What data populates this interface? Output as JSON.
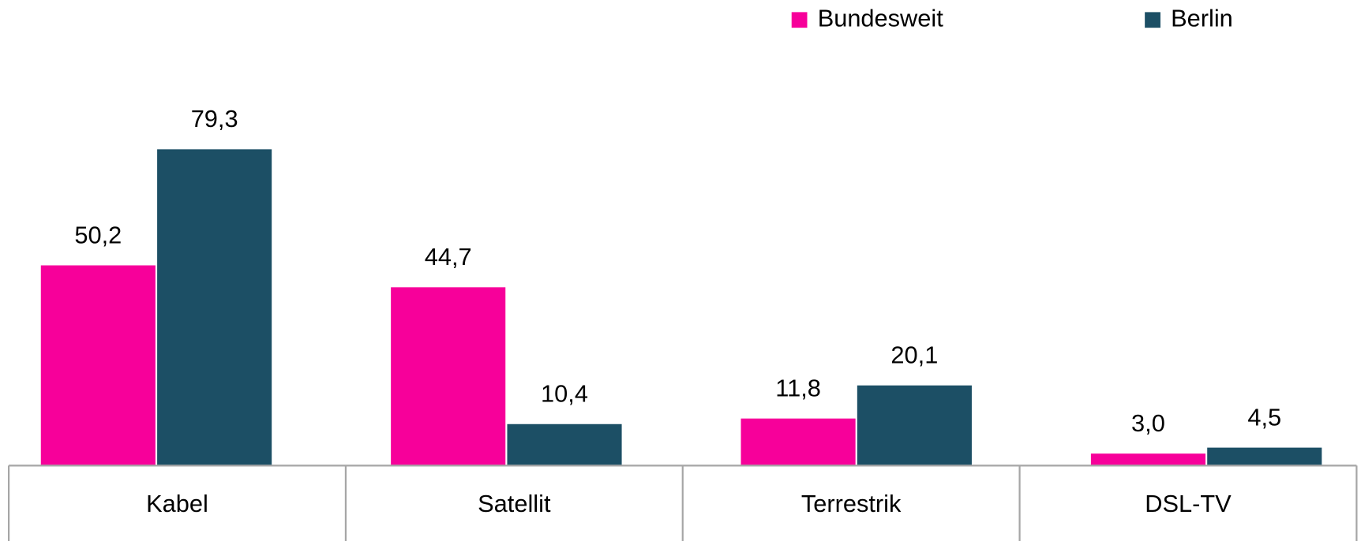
{
  "chart_data": {
    "type": "bar",
    "categories": [
      "Kabel",
      "Satellit",
      "Terrestrik",
      "DSL-TV"
    ],
    "series": [
      {
        "name": "Bundesweit",
        "color": "#f7009a",
        "values": [
          50.2,
          44.7,
          11.8,
          3.0
        ],
        "value_labels": [
          "50,2",
          "44,7",
          "11,8",
          "3,0"
        ]
      },
      {
        "name": "Berlin",
        "color": "#1c4f65",
        "values": [
          79.3,
          10.4,
          20.1,
          4.5
        ],
        "value_labels": [
          "79,3",
          "10,4",
          "20,1",
          "4,5"
        ]
      }
    ]
  }
}
